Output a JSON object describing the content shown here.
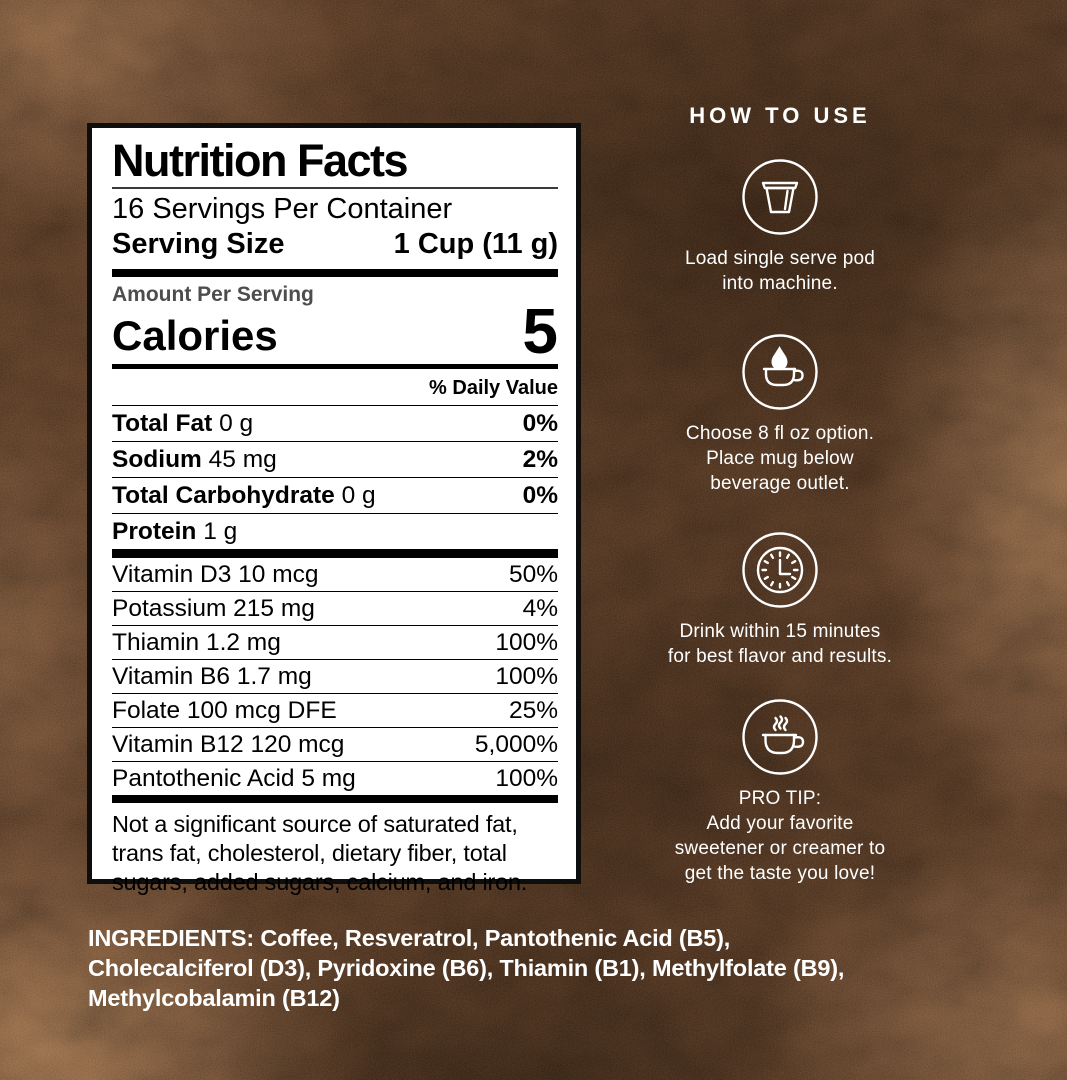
{
  "nutrition_label": {
    "title": "Nutrition Facts",
    "servings_per_container": "16 Servings Per Container",
    "serving_size_label": "Serving Size",
    "serving_size_value": "1 Cup (11 g)",
    "amount_per_serving": "Amount Per Serving",
    "calories_label": "Calories",
    "calories_value": "5",
    "daily_value_header": "% Daily Value",
    "main_rows": [
      {
        "name": "Total Fat",
        "amount": "0 g",
        "dv": "0%"
      },
      {
        "name": "Sodium",
        "amount": "45 mg",
        "dv": "2%"
      },
      {
        "name": "Total Carbohydrate",
        "amount": "0 g",
        "dv": "0%"
      },
      {
        "name": "Protein",
        "amount": "1 g",
        "dv": ""
      }
    ],
    "vitamin_rows": [
      {
        "name": "Vitamin D3 10 mcg",
        "dv": "50%"
      },
      {
        "name": "Potassium 215 mg",
        "dv": "4%"
      },
      {
        "name": "Thiamin 1.2 mg",
        "dv": "100%"
      },
      {
        "name": "Vitamin B6 1.7 mg",
        "dv": "100%"
      },
      {
        "name": "Folate 100 mcg DFE",
        "dv": "25%"
      },
      {
        "name": "Vitamin B12 120 mcg",
        "dv": "5,000%"
      },
      {
        "name": "Pantothenic Acid 5 mg",
        "dv": "100%"
      }
    ],
    "footnote": "Not a significant source of saturated fat, trans fat, cholesterol, dietary fiber, total sugars, added sugars, calcium, and iron."
  },
  "how_to_use": {
    "heading": "HOW TO USE",
    "steps": [
      {
        "icon": "coffee-pod-icon",
        "text": "Load single serve pod\ninto machine."
      },
      {
        "icon": "mug-droplet-icon",
        "text": "Choose 8 fl oz option.\nPlace mug below\nbeverage outlet."
      },
      {
        "icon": "clock-icon",
        "text": "Drink within 15 minutes\nfor best flavor and results."
      },
      {
        "icon": "steaming-mug-icon",
        "text": "PRO TIP:\nAdd your favorite\nsweetener or creamer to\nget the taste you love!"
      }
    ]
  },
  "ingredients": {
    "text": "INGREDIENTS: Coffee, Resveratrol, Pantothenic Acid (B5),\nCholecalciferol (D3), Pyridoxine (B6), Thiamin (B1), Methylfolate (B9),\nMethylcobalamin (B12)"
  },
  "colors": {
    "label_bg": "#ffffff",
    "label_border": "#0e0e0e",
    "text_dark": "#000000",
    "amount_per_serving_gray": "#4d4d4d",
    "text_light": "#ffffff",
    "background_brown": "#3f2717"
  }
}
